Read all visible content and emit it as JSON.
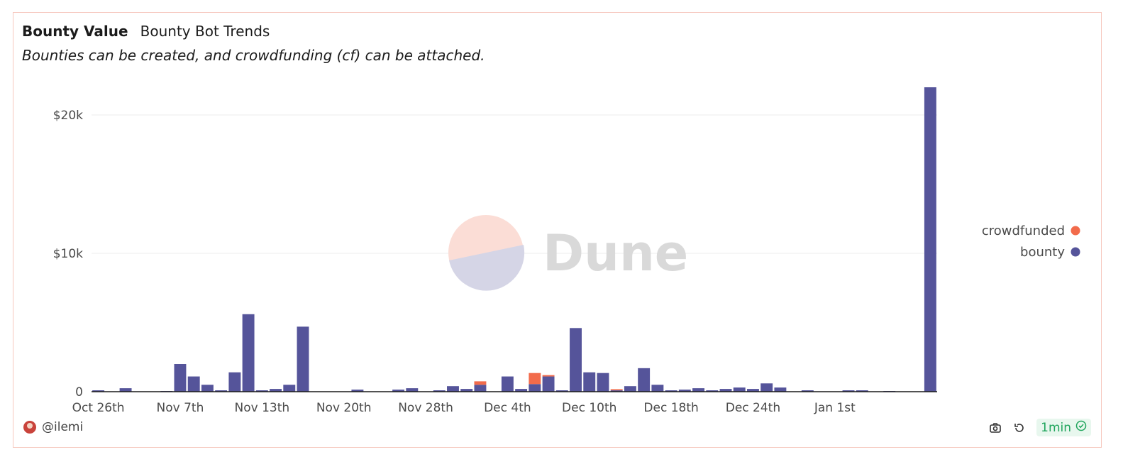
{
  "header": {
    "title": "Bounty Value",
    "subtitle": "Bounty Bot Trends",
    "description": "Bounties can be created, and crowdfunding (cf) can be attached."
  },
  "watermark": {
    "text": "Dune"
  },
  "footer": {
    "author": "@ilemi",
    "refresh_label": "1min",
    "icons": [
      "camera-icon",
      "refresh-icon",
      "check-circle-icon"
    ]
  },
  "colors": {
    "bounty": "#55549a",
    "crowdfunded": "#f26b4b",
    "grid": "#ececec",
    "axis": "#1a1a1a",
    "accent_green": "#1fa55c"
  },
  "chart_data": {
    "type": "bar",
    "stacked": true,
    "ylim": [
      0,
      22000
    ],
    "yticks": [
      0,
      10000,
      20000
    ],
    "ytick_labels": [
      "0",
      "$10k",
      "$20k"
    ],
    "xtick_labels": [
      "Oct 26th",
      "Nov 7th",
      "Nov 13th",
      "Nov 20th",
      "Nov 28th",
      "Dec 4th",
      "Dec 10th",
      "Dec 18th",
      "Dec 24th",
      "Jan 1st"
    ],
    "xtick_bar_index": [
      0,
      6,
      12,
      18,
      24,
      30,
      36,
      42,
      48,
      54
    ],
    "grid": true,
    "legend_position": "right",
    "series": [
      {
        "name": "crowdfunded",
        "color": "#f26b4b",
        "values": [
          0,
          0,
          0,
          0,
          0,
          0,
          0,
          0,
          0,
          0,
          0,
          0,
          0,
          0,
          0,
          0,
          0,
          0,
          0,
          0,
          0,
          0,
          0,
          0,
          0,
          0,
          0,
          0,
          250,
          0,
          0,
          0,
          800,
          100,
          0,
          0,
          0,
          0,
          80,
          0,
          0,
          0,
          0,
          0,
          0,
          0,
          0,
          0,
          0,
          0,
          0,
          0,
          0,
          0,
          0,
          0,
          0,
          0,
          0,
          0,
          0,
          0
        ]
      },
      {
        "name": "bounty",
        "color": "#55549a",
        "values": [
          100,
          0,
          250,
          0,
          0,
          50,
          2000,
          1100,
          500,
          100,
          1400,
          5600,
          100,
          200,
          500,
          4700,
          0,
          0,
          0,
          150,
          0,
          0,
          150,
          250,
          0,
          100,
          400,
          200,
          500,
          0,
          1100,
          200,
          550,
          1100,
          100,
          4600,
          1400,
          1350,
          100,
          400,
          1700,
          500,
          100,
          150,
          250,
          100,
          200,
          300,
          200,
          600,
          300,
          0,
          100,
          0,
          0,
          100,
          100,
          0,
          50,
          0,
          0,
          22000
        ]
      }
    ]
  }
}
